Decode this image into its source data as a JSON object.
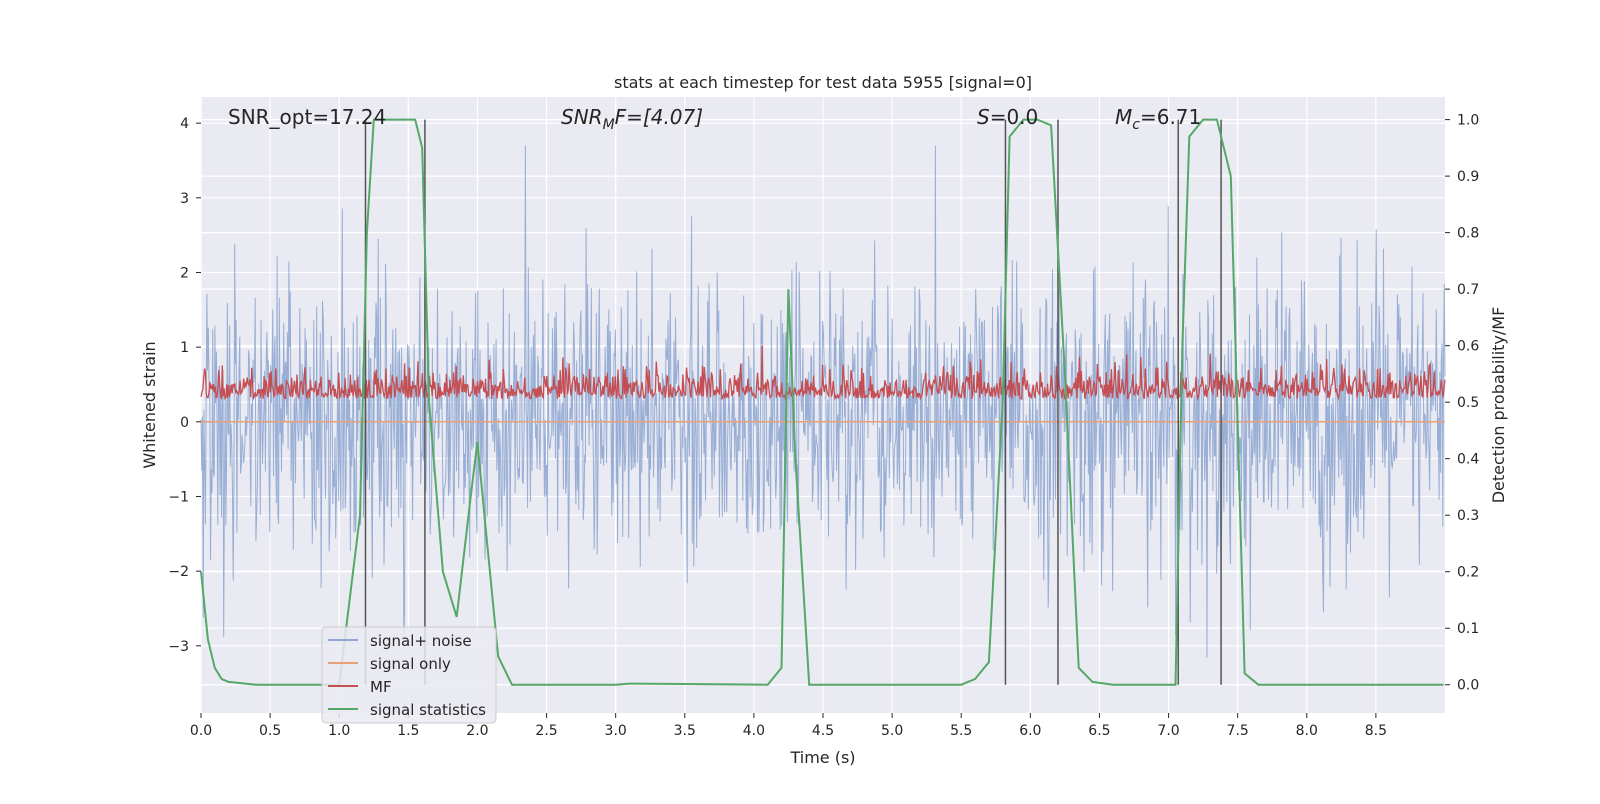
{
  "chart_data": {
    "type": "line",
    "title": "stats at each timestep for test data 5955 [signal=0]",
    "xlabel": "Time (s)",
    "ylabel_left": "Whitened strain",
    "ylabel_right": "Detection probability/MF",
    "xlim": [
      0.0,
      9.0
    ],
    "ylim_left": [
      -3.9,
      4.35
    ],
    "ylim_right": [
      -0.05,
      1.04
    ],
    "xticks": [
      "0.0",
      "0.5",
      "1.0",
      "1.5",
      "2.0",
      "2.5",
      "3.0",
      "3.5",
      "4.0",
      "4.5",
      "5.0",
      "5.5",
      "6.0",
      "6.5",
      "7.0",
      "7.5",
      "8.0",
      "8.5"
    ],
    "yticks_left": [
      "4",
      "3",
      "2",
      "1",
      "0",
      "−1",
      "−2",
      "−3"
    ],
    "yticks_right": [
      "1.0",
      "0.9",
      "0.8",
      "0.7",
      "0.6",
      "0.5",
      "0.4",
      "0.3",
      "0.2",
      "0.1",
      "0.0"
    ],
    "grid": true,
    "legend_placement": "lower-left",
    "annotations": {
      "snr_opt": "SNR_opt=17.24",
      "snr_mf_main": "SNR",
      "snr_mf_sub": "M",
      "snr_mf_rest": "F=[4.07]",
      "s_main": "S",
      "s_rest": "=0.0",
      "mc_main": "M",
      "mc_sub": "c",
      "mc_rest": "=6.71"
    },
    "series": [
      {
        "name": "signal+ noise",
        "color": "#8fa7d1",
        "description_noise": {
          "mean": 0.0,
          "typical_range": [
            -2.5,
            2.5
          ],
          "peak_max": 3.7,
          "peak_min": -3.6
        }
      },
      {
        "name": "signal only",
        "color": "#e8a07a",
        "y": 0.0
      },
      {
        "name": "MF",
        "color": "#c44e52",
        "description_noise": {
          "mean": 0.5,
          "range_right_axis": [
            0.47,
            0.6
          ]
        }
      },
      {
        "name": "signal statistics",
        "color": "#55a868",
        "x": [
          0.0,
          0.05,
          0.1,
          0.15,
          0.2,
          0.4,
          1.0,
          1.15,
          1.2,
          1.25,
          1.3,
          1.55,
          1.6,
          1.65,
          1.75,
          1.85,
          1.95,
          2.0,
          2.05,
          2.15,
          2.25,
          3.0,
          3.1,
          4.1,
          4.2,
          4.25,
          4.3,
          4.4,
          5.5,
          5.6,
          5.7,
          5.8,
          5.85,
          5.95,
          6.05,
          6.15,
          6.25,
          6.35,
          6.45,
          6.6,
          7.05,
          7.1,
          7.15,
          7.25,
          7.35,
          7.45,
          7.55,
          7.65,
          8.99
        ],
        "y": [
          0.2,
          0.08,
          0.03,
          0.01,
          0.005,
          0.0,
          0.0,
          0.3,
          0.8,
          1.0,
          1.0,
          1.0,
          0.95,
          0.5,
          0.2,
          0.12,
          0.33,
          0.43,
          0.3,
          0.05,
          0.0,
          0.0,
          0.002,
          0.0,
          0.03,
          0.7,
          0.4,
          0.0,
          0.0,
          0.01,
          0.04,
          0.5,
          0.97,
          1.0,
          1.0,
          0.99,
          0.55,
          0.03,
          0.005,
          0.0,
          0.0,
          0.6,
          0.97,
          1.0,
          1.0,
          0.9,
          0.02,
          0.0,
          0.0
        ]
      }
    ],
    "vertical_markers": [
      1.19,
      1.62,
      5.82,
      6.2,
      7.07,
      7.38
    ]
  }
}
